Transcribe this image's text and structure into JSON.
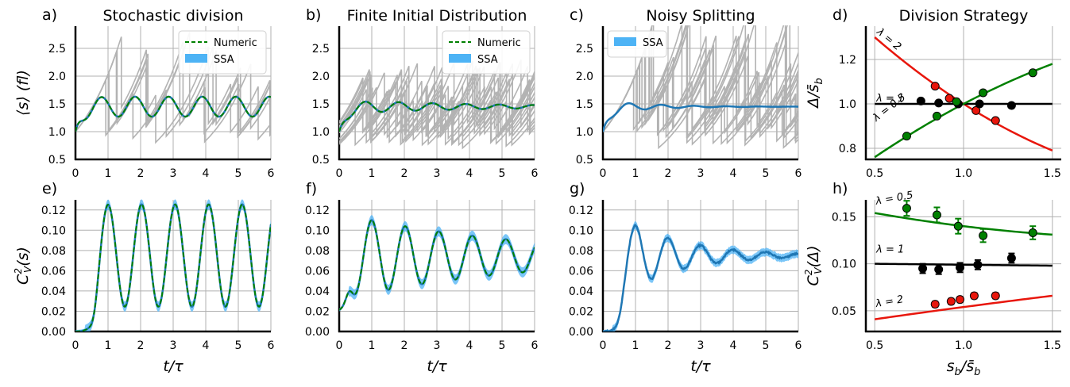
{
  "figure": {
    "width": 1347,
    "height": 488
  },
  "colors": {
    "numeric": "#008000",
    "ssa": "#1f77b4",
    "ssa_band": "#4db3f5",
    "gray": "#b3b3b3",
    "red": "#e8160c",
    "green": "#008000",
    "black": "#000000",
    "grid": "#b0b0b0"
  },
  "chart_data": [
    {
      "id": "a",
      "panel_label": "a)",
      "type": "line",
      "title": "Stochastic division",
      "ylabel": "⟨s⟩ (fl)",
      "xlabel": "",
      "xlim": [
        0,
        6
      ],
      "ylim": [
        0.5,
        2.9
      ],
      "xticks": [
        "0",
        "1",
        "2",
        "3",
        "4",
        "5",
        "6"
      ],
      "yticks": [
        "0.5",
        "1.0",
        "1.5",
        "2.0",
        "2.5"
      ],
      "legend": {
        "position": "top-right",
        "items": [
          {
            "label": "Numeric",
            "style": "dashed",
            "color": "#008000"
          },
          {
            "label": "SSA",
            "style": "patch",
            "color": "#4db3f5"
          }
        ]
      },
      "gray_traces": {
        "count": 5,
        "start": 1.0,
        "start_spread": 0.0,
        "peak_min": 1.6,
        "peak_max": 2.8,
        "drop_fraction": 0.5,
        "cycle_min": 0.4,
        "cycle_max": 1.7,
        "seed": 11
      },
      "mean_curve": {
        "kind": "oscill_mean",
        "amp": 0.18,
        "decay": 0.0,
        "period": 1.03,
        "phase": 0.8,
        "rise_rate": 5.5,
        "final": 1.45
      },
      "series": [
        {
          "name": "Numeric",
          "style": "dashed",
          "color": "#008000"
        },
        {
          "name": "SSA",
          "style": "solid",
          "color": "#1f77b4"
        }
      ]
    },
    {
      "id": "b",
      "panel_label": "b)",
      "type": "line",
      "title": "Finite Initial Distribution",
      "ylabel": "",
      "xlabel": "",
      "xlim": [
        0,
        6
      ],
      "ylim": [
        0.5,
        2.9
      ],
      "xticks": [
        "0",
        "1",
        "2",
        "3",
        "4",
        "5",
        "6"
      ],
      "yticks": [
        "0.5",
        "1.0",
        "1.5",
        "2.0",
        "2.5"
      ],
      "legend": {
        "position": "top-right",
        "items": [
          {
            "label": "Numeric",
            "style": "dashed",
            "color": "#008000"
          },
          {
            "label": "SSA",
            "style": "patch",
            "color": "#4db3f5"
          }
        ]
      },
      "gray_traces": {
        "count": 14,
        "start": 1.0,
        "start_spread": 0.25,
        "peak_min": 1.5,
        "peak_max": 2.3,
        "drop_fraction": 0.5,
        "cycle_min": 0.5,
        "cycle_max": 1.4,
        "seed": 23
      },
      "mean_curve": {
        "kind": "oscill_mean",
        "amp": 0.13,
        "decay": 0.25,
        "period": 1.03,
        "phase": 0.8,
        "rise_rate": 4.5,
        "final": 1.45
      },
      "series": [
        {
          "name": "Numeric",
          "style": "dashed",
          "color": "#008000"
        },
        {
          "name": "SSA",
          "style": "solid",
          "color": "#1f77b4"
        }
      ]
    },
    {
      "id": "c",
      "panel_label": "c)",
      "type": "line",
      "title": "Noisy Splitting",
      "ylabel": "",
      "xlabel": "",
      "xlim": [
        0,
        6
      ],
      "ylim": [
        0.5,
        2.9
      ],
      "xticks": [
        "0",
        "1",
        "2",
        "3",
        "4",
        "5",
        "6"
      ],
      "yticks": [
        "0.5",
        "1.0",
        "1.5",
        "2.0",
        "2.5"
      ],
      "legend": {
        "position": "top-left",
        "items": [
          {
            "label": "SSA",
            "style": "patch",
            "color": "#4db3f5"
          }
        ]
      },
      "gray_traces": {
        "count": 14,
        "start": 1.0,
        "start_spread": 0.0,
        "peak_min": 1.5,
        "peak_max": 3.1,
        "drop_fraction": 0.5,
        "cycle_min": 0.4,
        "cycle_max": 1.5,
        "seed": 37
      },
      "mean_curve": {
        "kind": "oscill_mean",
        "amp": 0.13,
        "decay": 0.75,
        "period": 1.0,
        "phase": 0.8,
        "rise_rate": 5.0,
        "final": 1.45
      },
      "series": [
        {
          "name": "SSA",
          "style": "solid",
          "color": "#1f77b4"
        }
      ]
    },
    {
      "id": "d",
      "panel_label": "d)",
      "type": "scatter",
      "title": "Division Strategy",
      "ylabel": "Δ/s̄_b",
      "xlabel": "",
      "xlim": [
        0.45,
        1.55
      ],
      "ylim": [
        0.75,
        1.35
      ],
      "xticks": [
        "0.5",
        "1.0",
        "1.5"
      ],
      "yticks": [
        "0.8",
        "1.0",
        "1.2"
      ],
      "series": [
        {
          "name": "λ = 2",
          "color": "#e8160c",
          "points": [
            [
              0.84,
              1.08
            ],
            [
              0.92,
              1.025
            ],
            [
              0.97,
              1.0
            ],
            [
              1.07,
              0.97
            ],
            [
              1.18,
              0.925
            ]
          ],
          "curve": [
            [
              0.5,
              1.3
            ],
            [
              0.75,
              1.13
            ],
            [
              1.0,
              1.0
            ],
            [
              1.25,
              0.89
            ],
            [
              1.5,
              0.79
            ]
          ]
        },
        {
          "name": "λ = 1",
          "color": "#000000",
          "points": [
            [
              0.76,
              1.013
            ],
            [
              0.86,
              1.004
            ],
            [
              0.97,
              1.0
            ],
            [
              1.09,
              1.0
            ],
            [
              1.27,
              0.993
            ]
          ],
          "curve": [
            [
              0.5,
              1.0
            ],
            [
              1.5,
              1.0
            ]
          ]
        },
        {
          "name": "λ = 0.5",
          "color": "#008000",
          "points": [
            [
              0.68,
              0.855
            ],
            [
              0.85,
              0.945
            ],
            [
              0.96,
              1.01
            ],
            [
              1.11,
              1.05
            ],
            [
              1.39,
              1.14
            ]
          ],
          "curve": [
            [
              0.5,
              0.76
            ],
            [
              0.75,
              0.88
            ],
            [
              1.0,
              1.0
            ],
            [
              1.25,
              1.09
            ],
            [
              1.5,
              1.18
            ]
          ]
        }
      ],
      "annotations": [
        {
          "text": "λ = 2",
          "x": 0.5,
          "y": 1.32,
          "rotate": 40
        },
        {
          "text": "λ = 1",
          "x": 0.5,
          "y": 1.01,
          "rotate": 0
        },
        {
          "text": "λ = 0.5",
          "x": 0.5,
          "y": 0.92,
          "rotate": -38
        }
      ]
    },
    {
      "id": "e",
      "panel_label": "e)",
      "type": "line",
      "title": "",
      "ylabel": "C²_V(s)",
      "xlabel": "t/τ",
      "xlim": [
        0,
        6
      ],
      "ylim": [
        0,
        0.13
      ],
      "xticks": [
        "0",
        "1",
        "2",
        "3",
        "4",
        "5",
        "6"
      ],
      "yticks": [
        "0.00",
        "0.02",
        "0.04",
        "0.06",
        "0.08",
        "0.10",
        "0.12"
      ],
      "cv_curve": {
        "period": 1.03,
        "peak": 0.125,
        "trough": 0.024,
        "decay": 0.0,
        "mean": 0.075,
        "onset": 0.55,
        "start": 0.0,
        "band": 0.005
      },
      "series": [
        {
          "name": "Numeric",
          "style": "dashed",
          "color": "#008000"
        },
        {
          "name": "SSA",
          "style": "solid",
          "color": "#1f77b4"
        }
      ]
    },
    {
      "id": "f",
      "panel_label": "f)",
      "type": "line",
      "title": "",
      "ylabel": "",
      "xlabel": "t/τ",
      "xlim": [
        0,
        6
      ],
      "ylim": [
        0,
        0.13
      ],
      "xticks": [
        "0",
        "1",
        "2",
        "3",
        "4",
        "5",
        "6"
      ],
      "yticks": [
        "0.00",
        "0.02",
        "0.04",
        "0.06",
        "0.08",
        "0.10",
        "0.12"
      ],
      "cv_curve": {
        "period": 1.03,
        "peak": 0.112,
        "trough": 0.04,
        "decay": 0.18,
        "mean": 0.074,
        "onset": 0.3,
        "start": 0.02,
        "band": 0.005
      },
      "series": [
        {
          "name": "Numeric",
          "style": "dashed",
          "color": "#008000"
        },
        {
          "name": "SSA",
          "style": "solid",
          "color": "#1f77b4"
        }
      ]
    },
    {
      "id": "g",
      "panel_label": "g)",
      "type": "line",
      "title": "",
      "ylabel": "",
      "xlabel": "t/τ",
      "xlim": [
        0,
        6
      ],
      "ylim": [
        0,
        0.13
      ],
      "xticks": [
        "0",
        "1",
        "2",
        "3",
        "4",
        "5",
        "6"
      ],
      "yticks": [
        "0.00",
        "0.02",
        "0.04",
        "0.06",
        "0.08",
        "0.10",
        "0.12"
      ],
      "cv_curve": {
        "period": 1.0,
        "peak": 0.105,
        "trough": 0.045,
        "decay": 0.55,
        "mean": 0.075,
        "onset": 0.55,
        "start": 0.0,
        "band": 0.004
      },
      "series": [
        {
          "name": "SSA",
          "style": "solid",
          "color": "#1f77b4"
        }
      ]
    },
    {
      "id": "h",
      "panel_label": "h)",
      "type": "scatter",
      "title": "",
      "ylabel": "C²_V(Δ)",
      "xlabel": "s_b/s̄_b",
      "xlim": [
        0.45,
        1.55
      ],
      "ylim": [
        0.028,
        0.168
      ],
      "xticks": [
        "0.5",
        "1.0",
        "1.5"
      ],
      "yticks": [
        "0.05",
        "0.10",
        "0.15"
      ],
      "series": [
        {
          "name": "λ = 0.5",
          "color": "#008000",
          "points": [
            [
              0.68,
              0.159,
              0.008
            ],
            [
              0.85,
              0.152,
              0.008
            ],
            [
              0.97,
              0.14,
              0.008
            ],
            [
              1.11,
              0.13,
              0.007
            ],
            [
              1.39,
              0.133,
              0.007
            ]
          ],
          "curve": [
            [
              0.5,
              0.154
            ],
            [
              1.0,
              0.14
            ],
            [
              1.5,
              0.131
            ]
          ]
        },
        {
          "name": "λ = 1",
          "color": "#000000",
          "points": [
            [
              0.77,
              0.095,
              0.005
            ],
            [
              0.86,
              0.094,
              0.005
            ],
            [
              0.98,
              0.096,
              0.005
            ],
            [
              1.08,
              0.099,
              0.005
            ],
            [
              1.27,
              0.106,
              0.005
            ]
          ],
          "curve": [
            [
              0.5,
              0.1
            ],
            [
              1.5,
              0.098
            ]
          ]
        },
        {
          "name": "λ = 2",
          "color": "#e8160c",
          "points": [
            [
              0.84,
              0.057,
              0.003
            ],
            [
              0.93,
              0.06,
              0.003
            ],
            [
              0.98,
              0.062,
              0.003
            ],
            [
              1.06,
              0.066,
              0.003
            ],
            [
              1.18,
              0.066,
              0.003
            ]
          ],
          "curve": [
            [
              0.5,
              0.041
            ],
            [
              1.0,
              0.054
            ],
            [
              1.5,
              0.066
            ]
          ]
        }
      ],
      "annotations": [
        {
          "text": "λ = 0.5",
          "x": 0.5,
          "y": 0.163,
          "rotate": -10
        },
        {
          "text": "λ = 1",
          "x": 0.5,
          "y": 0.112,
          "rotate": 0
        },
        {
          "text": "λ = 2",
          "x": 0.5,
          "y": 0.054,
          "rotate": -10
        }
      ]
    }
  ]
}
